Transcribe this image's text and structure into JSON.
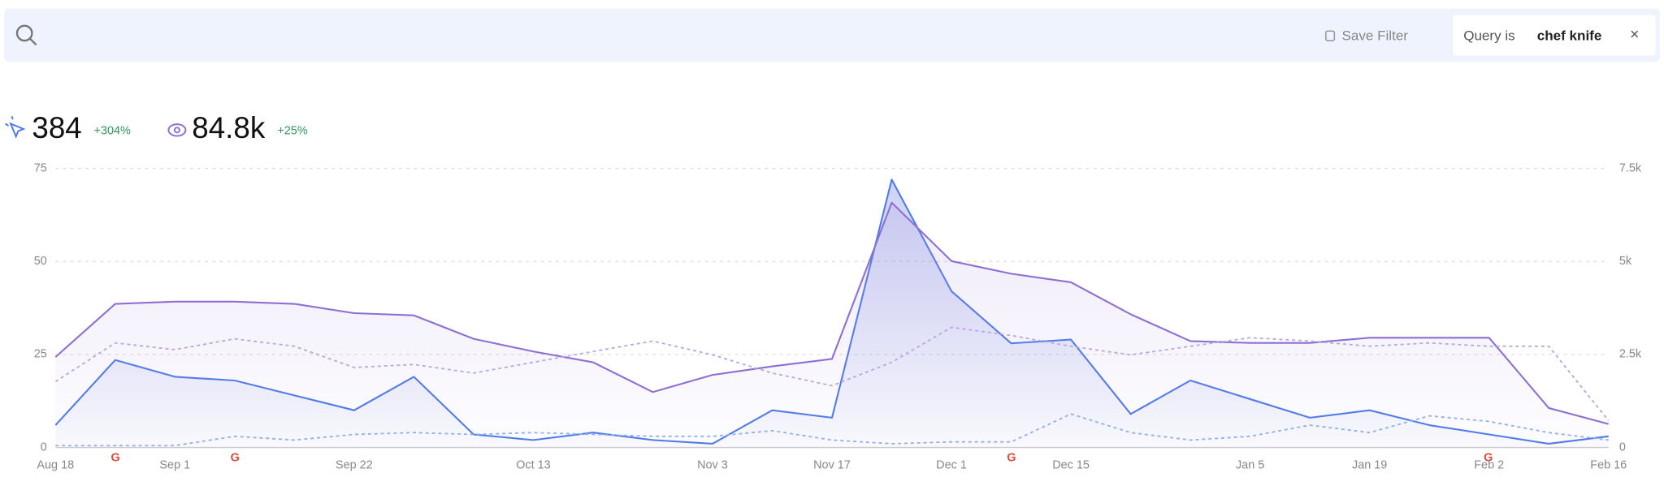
{
  "search_bar": {
    "save_filter": "Save Filter",
    "filter_prefix": "Query is",
    "filter_value": "chef knife",
    "filter_close": "×"
  },
  "metrics": [
    {
      "value": "384",
      "change": "+304%"
    },
    {
      "value": "84.8k",
      "change": "+25%"
    }
  ],
  "chart_data": {
    "type": "line",
    "categories": [
      "Aug 18",
      null,
      "Sep 1",
      null,
      null,
      "Sep 22",
      null,
      null,
      "Oct 13",
      null,
      null,
      "Nov 3",
      null,
      "Nov 17",
      null,
      "Dec 1",
      null,
      "Dec 15",
      null,
      null,
      "Jan 5",
      null,
      "Jan 19",
      null,
      "Feb 2",
      null,
      "Feb 16"
    ],
    "ylim": [
      0,
      75
    ],
    "yticks": [
      0,
      25,
      50,
      75
    ],
    "y2lim": [
      0,
      7500
    ],
    "y2ticks": [
      0,
      {
        "value": 2500,
        "label": "2.5k"
      },
      {
        "value": 5000,
        "label": "5k"
      },
      {
        "value": 7500,
        "label": "7.5k"
      }
    ],
    "grid": true,
    "series": [
      {
        "color": "#4f7be8",
        "style": "solid",
        "fill": true,
        "axis": "y",
        "values": [
          6,
          23.5,
          19,
          18,
          14,
          10,
          19,
          3.5,
          2,
          4,
          2,
          1,
          10,
          8,
          72,
          42,
          28,
          29,
          9,
          18,
          13,
          8,
          10,
          6,
          3.5,
          1,
          3
        ]
      },
      {
        "color": "#8e6fd3",
        "style": "solid",
        "fill": true,
        "axis": "y2",
        "values": [
          2430,
          3860,
          3920,
          3920,
          3860,
          3610,
          3550,
          2920,
          2580,
          2290,
          1490,
          1950,
          2180,
          2380,
          6580,
          5010,
          4670,
          4440,
          3580,
          2860,
          2810,
          2810,
          2950,
          2950,
          2950,
          1060,
          630
        ]
      },
      {
        "color": "#b9a6e6",
        "style": "dotted",
        "fill": false,
        "axis": "y2",
        "values": [
          1770,
          2810,
          2630,
          2920,
          2720,
          2150,
          2230,
          2000,
          2290,
          2580,
          2860,
          2490,
          2000,
          1660,
          2290,
          3230,
          3010,
          2720,
          2490,
          2720,
          2950,
          2860,
          2720,
          2810,
          2720,
          2720,
          720
        ]
      },
      {
        "color": "#8fb0f2",
        "style": "dotted",
        "fill": false,
        "axis": "y",
        "values": [
          0.5,
          0.5,
          0.5,
          3,
          2,
          3.5,
          4,
          3.5,
          4,
          3.5,
          3,
          3,
          4.5,
          2,
          1,
          1.5,
          1.5,
          9,
          4,
          2,
          3,
          6,
          4,
          8.5,
          7,
          4,
          2
        ]
      }
    ]
  }
}
